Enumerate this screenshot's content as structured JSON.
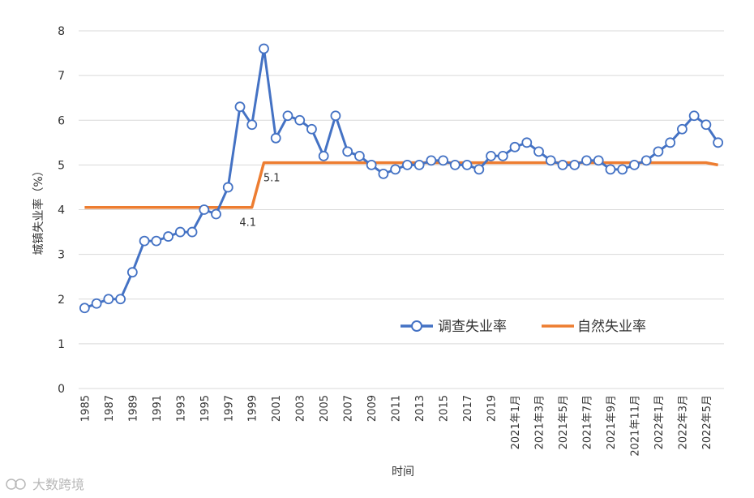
{
  "chart_data": {
    "type": "line",
    "title": "",
    "xlabel": "时间",
    "ylabel": "城镇失业率（%）",
    "ylim": [
      0,
      8
    ],
    "yticks": [
      0,
      1,
      2,
      3,
      4,
      5,
      6,
      7,
      8
    ],
    "grid": true,
    "legend_position": "lower-right",
    "categories": [
      "1985",
      "1986",
      "1987",
      "1988",
      "1989",
      "1990",
      "1991",
      "1992",
      "1993",
      "1994",
      "1995",
      "1996",
      "1997",
      "1998",
      "1999",
      "2000",
      "2001",
      "2002",
      "2003",
      "2004",
      "2005",
      "2006",
      "2007",
      "2008",
      "2009",
      "2010",
      "2011",
      "2012",
      "2013",
      "2014",
      "2015",
      "2016",
      "2017",
      "2018",
      "2019",
      "2020",
      "2021年1月",
      "2021年2月",
      "2021年3月",
      "2021年4月",
      "2021年5月",
      "2021年6月",
      "2021年7月",
      "2021年8月",
      "2021年9月",
      "2021年10月",
      "2021年11月",
      "2021年12月",
      "2022年1月",
      "2022年2月",
      "2022年3月",
      "2022年4月",
      "2022年5月",
      "2022年6月"
    ],
    "tick_labels": [
      "1985",
      "1987",
      "1989",
      "1991",
      "1993",
      "1995",
      "1997",
      "1999",
      "2001",
      "2003",
      "2005",
      "2007",
      "2009",
      "2011",
      "2013",
      "2015",
      "2017",
      "2019",
      "2021年1月",
      "2021年3月",
      "2021年5月",
      "2021年7月",
      "2021年9月",
      "2021年11月",
      "2022年1月",
      "2022年3月",
      "2022年5月"
    ],
    "series": [
      {
        "name": "调查失业率",
        "color": "#4472C4",
        "marker": "circle",
        "values": [
          1.8,
          1.9,
          2.0,
          2.0,
          2.6,
          3.3,
          3.3,
          3.4,
          3.5,
          3.5,
          4.0,
          3.9,
          4.5,
          6.3,
          5.9,
          7.6,
          5.6,
          6.1,
          6.0,
          5.8,
          5.2,
          6.1,
          5.3,
          5.2,
          5.0,
          4.8,
          4.9,
          5.0,
          5.0,
          5.1,
          5.1,
          5.0,
          5.0,
          4.9,
          5.2,
          5.2,
          5.4,
          5.5,
          5.3,
          5.1,
          5.0,
          5.0,
          5.1,
          5.1,
          4.9,
          4.9,
          5.0,
          5.1,
          5.3,
          5.5,
          5.8,
          6.1,
          5.9,
          5.5
        ]
      },
      {
        "name": "自然失业率",
        "color": "#ED7D31",
        "values": [
          4.05,
          4.05,
          4.05,
          4.05,
          4.05,
          4.05,
          4.05,
          4.05,
          4.05,
          4.05,
          4.05,
          4.05,
          4.05,
          4.05,
          4.05,
          5.05,
          5.05,
          5.05,
          5.05,
          5.05,
          5.05,
          5.05,
          5.05,
          5.05,
          5.05,
          5.05,
          5.05,
          5.05,
          5.05,
          5.05,
          5.05,
          5.05,
          5.05,
          5.05,
          5.05,
          5.05,
          5.05,
          5.05,
          5.05,
          5.05,
          5.05,
          5.05,
          5.05,
          5.05,
          5.05,
          5.05,
          5.05,
          5.05,
          5.05,
          5.05,
          5.05,
          5.05,
          5.05,
          5.0
        ]
      }
    ],
    "annotations": [
      {
        "text": "4.1",
        "category": "1999",
        "value": 4.05
      },
      {
        "text": "5.1",
        "category": "2001",
        "value": 5.05
      }
    ]
  },
  "watermark": {
    "text": "大数跨境"
  }
}
